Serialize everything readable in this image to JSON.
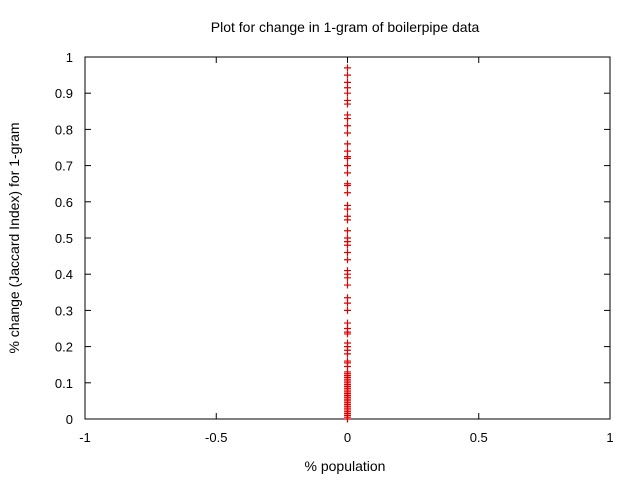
{
  "chart_data": {
    "type": "scatter",
    "title": "Plot for change in 1-gram of boilerpipe data",
    "xlabel": "% population",
    "ylabel": "% change (Jaccard Index) for 1-gram",
    "xlim": [
      -1,
      1
    ],
    "ylim": [
      0,
      1
    ],
    "xticks": [
      "-1",
      "-0.5",
      "0",
      "0.5",
      "1"
    ],
    "yticks": [
      "0",
      "0.1",
      "0.2",
      "0.3",
      "0.4",
      "0.5",
      "0.6",
      "0.7",
      "0.8",
      "0.9",
      "1"
    ],
    "grid": false,
    "legend": "none",
    "marker": "plus",
    "color": "#e00000",
    "points": [
      [
        0,
        0.0
      ],
      [
        0,
        0.005
      ],
      [
        0,
        0.01
      ],
      [
        0,
        0.015
      ],
      [
        0,
        0.02
      ],
      [
        0,
        0.025
      ],
      [
        0,
        0.03
      ],
      [
        0,
        0.035
      ],
      [
        0,
        0.04
      ],
      [
        0,
        0.045
      ],
      [
        0,
        0.05
      ],
      [
        0,
        0.055
      ],
      [
        0,
        0.06
      ],
      [
        0,
        0.065
      ],
      [
        0,
        0.07
      ],
      [
        0,
        0.075
      ],
      [
        0,
        0.08
      ],
      [
        0,
        0.085
      ],
      [
        0,
        0.09
      ],
      [
        0,
        0.095
      ],
      [
        0,
        0.1
      ],
      [
        0,
        0.105
      ],
      [
        0,
        0.11
      ],
      [
        0,
        0.115
      ],
      [
        0,
        0.12
      ],
      [
        0,
        0.125
      ],
      [
        0,
        0.13
      ],
      [
        0,
        0.145
      ],
      [
        0,
        0.155
      ],
      [
        0,
        0.16
      ],
      [
        0,
        0.18
      ],
      [
        0,
        0.19
      ],
      [
        0,
        0.2
      ],
      [
        0,
        0.21
      ],
      [
        0,
        0.235
      ],
      [
        0,
        0.24
      ],
      [
        0,
        0.25
      ],
      [
        0,
        0.265
      ],
      [
        0,
        0.3
      ],
      [
        0,
        0.32
      ],
      [
        0,
        0.335
      ],
      [
        0,
        0.37
      ],
      [
        0,
        0.39
      ],
      [
        0,
        0.4
      ],
      [
        0,
        0.41
      ],
      [
        0,
        0.44
      ],
      [
        0,
        0.46
      ],
      [
        0,
        0.48
      ],
      [
        0,
        0.49
      ],
      [
        0,
        0.5
      ],
      [
        0,
        0.52
      ],
      [
        0,
        0.55
      ],
      [
        0,
        0.56
      ],
      [
        0,
        0.58
      ],
      [
        0,
        0.59
      ],
      [
        0,
        0.625
      ],
      [
        0,
        0.645
      ],
      [
        0,
        0.65
      ],
      [
        0,
        0.68
      ],
      [
        0,
        0.7
      ],
      [
        0,
        0.72
      ],
      [
        0,
        0.725
      ],
      [
        0,
        0.74
      ],
      [
        0,
        0.76
      ],
      [
        0,
        0.79
      ],
      [
        0,
        0.81
      ],
      [
        0,
        0.83
      ],
      [
        0,
        0.84
      ],
      [
        0,
        0.87
      ],
      [
        0,
        0.88
      ],
      [
        0,
        0.9
      ],
      [
        0,
        0.915
      ],
      [
        0,
        0.93
      ],
      [
        0,
        0.95
      ],
      [
        0,
        0.97
      ]
    ]
  }
}
